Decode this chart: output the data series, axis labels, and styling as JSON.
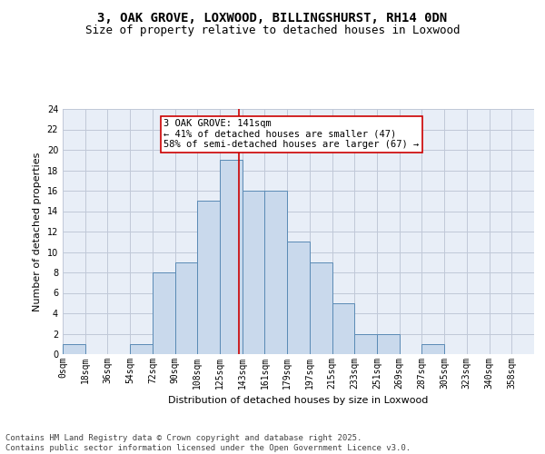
{
  "title1": "3, OAK GROVE, LOXWOOD, BILLINGSHURST, RH14 0DN",
  "title2": "Size of property relative to detached houses in Loxwood",
  "xlabel": "Distribution of detached houses by size in Loxwood",
  "ylabel": "Number of detached properties",
  "bin_labels": [
    "0sqm",
    "18sqm",
    "36sqm",
    "54sqm",
    "72sqm",
    "90sqm",
    "108sqm",
    "125sqm",
    "143sqm",
    "161sqm",
    "179sqm",
    "197sqm",
    "215sqm",
    "233sqm",
    "251sqm",
    "269sqm",
    "287sqm",
    "305sqm",
    "323sqm",
    "340sqm",
    "358sqm"
  ],
  "bar_values": [
    1,
    0,
    0,
    1,
    8,
    9,
    15,
    19,
    16,
    16,
    11,
    9,
    5,
    2,
    2,
    0,
    1,
    0,
    0,
    0,
    0
  ],
  "bar_color": "#c9d9ec",
  "bar_edgecolor": "#5a8ab5",
  "grid_color": "#c0c8d8",
  "bg_color": "#e8eef7",
  "vline_x": 141,
  "vline_color": "#cc0000",
  "annotation_text": "3 OAK GROVE: 141sqm\n← 41% of detached houses are smaller (47)\n58% of semi-detached houses are larger (67) →",
  "annotation_box_color": "#ffffff",
  "annotation_box_edgecolor": "#cc0000",
  "ylim": [
    0,
    24
  ],
  "yticks": [
    0,
    2,
    4,
    6,
    8,
    10,
    12,
    14,
    16,
    18,
    20,
    22,
    24
  ],
  "bin_width": 18,
  "footer_text": "Contains HM Land Registry data © Crown copyright and database right 2025.\nContains public sector information licensed under the Open Government Licence v3.0.",
  "title1_fontsize": 10,
  "title2_fontsize": 9,
  "axis_label_fontsize": 8,
  "tick_fontsize": 7,
  "annotation_fontsize": 7.5,
  "footer_fontsize": 6.5
}
